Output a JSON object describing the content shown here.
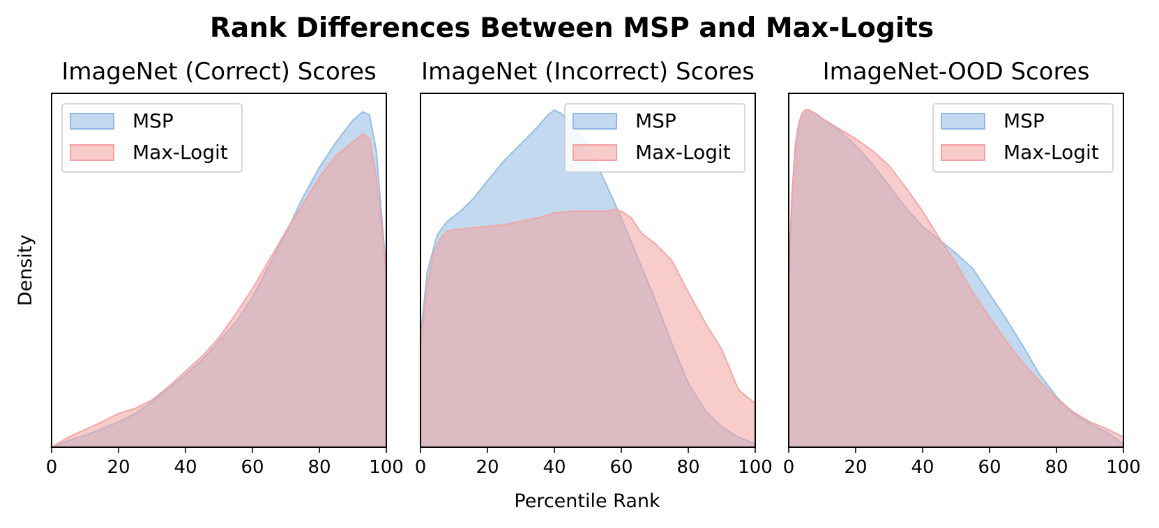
{
  "figure": {
    "title": "Rank Differences Between MSP and Max-Logits",
    "ylabel": "Density",
    "xlabel": "Percentile Rank"
  },
  "colors": {
    "msp": "#8fb9e3",
    "max_logit": "#f2a29f"
  },
  "chart_data": [
    {
      "type": "area",
      "title": "ImageNet (Correct) Scores",
      "xlim": [
        0,
        100
      ],
      "xticks": [
        "0",
        "20",
        "40",
        "60",
        "80",
        "100"
      ],
      "ylim": [
        0,
        1
      ],
      "legend_position": "top-left",
      "series": [
        {
          "name": "MSP",
          "x": [
            0,
            5,
            10,
            15,
            20,
            25,
            30,
            35,
            40,
            45,
            50,
            55,
            60,
            65,
            70,
            75,
            80,
            85,
            90,
            93,
            95,
            97,
            100
          ],
          "y": [
            0,
            0.02,
            0.035,
            0.055,
            0.075,
            0.1,
            0.135,
            0.175,
            0.215,
            0.26,
            0.315,
            0.37,
            0.445,
            0.54,
            0.635,
            0.74,
            0.83,
            0.905,
            0.97,
            0.995,
            0.985,
            0.88,
            0.52
          ]
        },
        {
          "name": "Max-Logit",
          "x": [
            0,
            5,
            10,
            15,
            20,
            25,
            30,
            35,
            40,
            45,
            50,
            55,
            60,
            65,
            70,
            75,
            80,
            85,
            90,
            93,
            95,
            97,
            100
          ],
          "y": [
            0,
            0.03,
            0.052,
            0.075,
            0.1,
            0.115,
            0.14,
            0.18,
            0.225,
            0.27,
            0.325,
            0.395,
            0.47,
            0.555,
            0.64,
            0.72,
            0.8,
            0.865,
            0.905,
            0.93,
            0.915,
            0.8,
            0.52
          ]
        }
      ]
    },
    {
      "type": "area",
      "title": "ImageNet (Incorrect) Scores",
      "xlim": [
        0,
        100
      ],
      "xticks": [
        "0",
        "20",
        "40",
        "60",
        "80",
        "100"
      ],
      "ylim": [
        0,
        1
      ],
      "legend_position": "top-right",
      "series": [
        {
          "name": "MSP",
          "x": [
            0,
            2,
            5,
            8,
            12,
            16,
            20,
            25,
            30,
            35,
            38,
            40,
            42,
            45,
            50,
            55,
            60,
            65,
            70,
            75,
            80,
            85,
            90,
            95,
            100
          ],
          "y": [
            0.33,
            0.52,
            0.63,
            0.67,
            0.7,
            0.74,
            0.79,
            0.85,
            0.9,
            0.95,
            0.985,
            1.0,
            0.99,
            0.965,
            0.89,
            0.79,
            0.68,
            0.56,
            0.44,
            0.31,
            0.19,
            0.11,
            0.06,
            0.03,
            0.01
          ]
        },
        {
          "name": "Max-Logit",
          "x": [
            0,
            2,
            4,
            6,
            8,
            10,
            15,
            20,
            25,
            30,
            35,
            40,
            45,
            50,
            55,
            58,
            60,
            63,
            66,
            70,
            75,
            80,
            85,
            90,
            95,
            100
          ],
          "y": [
            0.3,
            0.48,
            0.58,
            0.62,
            0.64,
            0.645,
            0.65,
            0.655,
            0.66,
            0.67,
            0.68,
            0.695,
            0.7,
            0.7,
            0.7,
            0.705,
            0.7,
            0.68,
            0.635,
            0.605,
            0.555,
            0.46,
            0.37,
            0.29,
            0.17,
            0.13
          ]
        }
      ]
    },
    {
      "type": "area",
      "title": "ImageNet-OOD Scores",
      "xlim": [
        0,
        100
      ],
      "xticks": [
        "0",
        "20",
        "40",
        "60",
        "80",
        "100"
      ],
      "ylim": [
        0,
        1
      ],
      "legend_position": "top-right",
      "series": [
        {
          "name": "MSP",
          "x": [
            0,
            1,
            2,
            3,
            4,
            5,
            6,
            8,
            10,
            15,
            20,
            25,
            30,
            35,
            40,
            45,
            50,
            55,
            60,
            65,
            70,
            75,
            80,
            85,
            90,
            95,
            100
          ],
          "y": [
            0.5,
            0.75,
            0.9,
            0.96,
            0.99,
            1.0,
            1.0,
            0.99,
            0.975,
            0.94,
            0.895,
            0.84,
            0.775,
            0.71,
            0.655,
            0.615,
            0.575,
            0.53,
            0.455,
            0.38,
            0.3,
            0.215,
            0.15,
            0.1,
            0.07,
            0.045,
            0.01
          ]
        },
        {
          "name": "Max-Logit",
          "x": [
            0,
            1,
            2,
            3,
            4,
            5,
            6,
            8,
            10,
            15,
            20,
            25,
            30,
            35,
            40,
            45,
            50,
            55,
            60,
            65,
            70,
            75,
            80,
            85,
            90,
            95,
            100
          ],
          "y": [
            0.5,
            0.75,
            0.9,
            0.96,
            0.99,
            1.0,
            1.0,
            0.99,
            0.975,
            0.945,
            0.915,
            0.88,
            0.835,
            0.77,
            0.7,
            0.62,
            0.545,
            0.46,
            0.385,
            0.315,
            0.25,
            0.195,
            0.145,
            0.105,
            0.075,
            0.055,
            0.03
          ]
        }
      ]
    }
  ]
}
